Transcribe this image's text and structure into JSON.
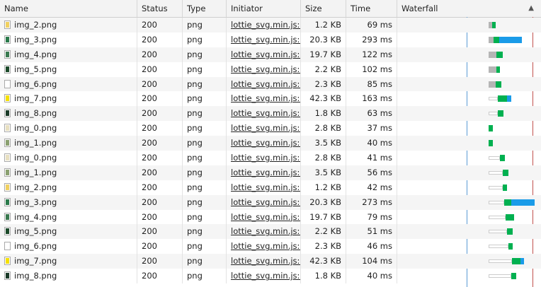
{
  "columns": {
    "name": "Name",
    "status": "Status",
    "type": "Type",
    "initiator": "Initiator",
    "size": "Size",
    "time": "Time",
    "waterfall": "Waterfall"
  },
  "colors": {
    "queue": "#ffffff",
    "stall": "#b5b5b5",
    "waiting": "#00b050",
    "download": "#1a9be8",
    "dom_line": "#5b9bd5",
    "load_line": "#c0504d"
  },
  "rows": [
    {
      "name": "img_2.png",
      "status": "200",
      "type": "png",
      "initiator": "lottie_svg.min.js:1",
      "size": "1.2 KB",
      "time": "69 ms",
      "icon": "#f0d060"
    },
    {
      "name": "img_3.png",
      "status": "200",
      "type": "png",
      "initiator": "lottie_svg.min.js:1",
      "size": "20.3 KB",
      "time": "293 ms",
      "icon": "#2a7a4a"
    },
    {
      "name": "img_4.png",
      "status": "200",
      "type": "png",
      "initiator": "lottie_svg.min.js:1",
      "size": "19.7 KB",
      "time": "122 ms",
      "icon": "#3a7a50"
    },
    {
      "name": "img_5.png",
      "status": "200",
      "type": "png",
      "initiator": "lottie_svg.min.js:1",
      "size": "2.2 KB",
      "time": "102 ms",
      "icon": "#1c4a2a"
    },
    {
      "name": "img_6.png",
      "status": "200",
      "type": "png",
      "initiator": "lottie_svg.min.js:1",
      "size": "2.3 KB",
      "time": "85 ms",
      "icon": "#ffffff"
    },
    {
      "name": "img_7.png",
      "status": "200",
      "type": "png",
      "initiator": "lottie_svg.min.js:1",
      "size": "42.3 KB",
      "time": "163 ms",
      "icon": "#f5e000"
    },
    {
      "name": "img_8.png",
      "status": "200",
      "type": "png",
      "initiator": "lottie_svg.min.js:1",
      "size": "1.8 KB",
      "time": "63 ms",
      "icon": "#1a3a28"
    },
    {
      "name": "img_0.png",
      "status": "200",
      "type": "png",
      "initiator": "lottie_svg.min.js:1",
      "size": "2.8 KB",
      "time": "37 ms",
      "icon": "#e8e0c0"
    },
    {
      "name": "img_1.png",
      "status": "200",
      "type": "png",
      "initiator": "lottie_svg.min.js:1",
      "size": "3.5 KB",
      "time": "40 ms",
      "icon": "#8aa070"
    },
    {
      "name": "img_0.png",
      "status": "200",
      "type": "png",
      "initiator": "lottie_svg.min.js:1",
      "size": "2.8 KB",
      "time": "41 ms",
      "icon": "#e8e0c0"
    },
    {
      "name": "img_1.png",
      "status": "200",
      "type": "png",
      "initiator": "lottie_svg.min.js:1",
      "size": "3.5 KB",
      "time": "56 ms",
      "icon": "#8aa070"
    },
    {
      "name": "img_2.png",
      "status": "200",
      "type": "png",
      "initiator": "lottie_svg.min.js:1",
      "size": "1.2 KB",
      "time": "42 ms",
      "icon": "#f0d060"
    },
    {
      "name": "img_3.png",
      "status": "200",
      "type": "png",
      "initiator": "lottie_svg.min.js:1",
      "size": "20.3 KB",
      "time": "273 ms",
      "icon": "#2a7a4a"
    },
    {
      "name": "img_4.png",
      "status": "200",
      "type": "png",
      "initiator": "lottie_svg.min.js:1",
      "size": "19.7 KB",
      "time": "79 ms",
      "icon": "#3a7a50"
    },
    {
      "name": "img_5.png",
      "status": "200",
      "type": "png",
      "initiator": "lottie_svg.min.js:1",
      "size": "2.2 KB",
      "time": "51 ms",
      "icon": "#1c4a2a"
    },
    {
      "name": "img_6.png",
      "status": "200",
      "type": "png",
      "initiator": "lottie_svg.min.js:1",
      "size": "2.3 KB",
      "time": "46 ms",
      "icon": "#ffffff"
    },
    {
      "name": "img_7.png",
      "status": "200",
      "type": "png",
      "initiator": "lottie_svg.min.js:1",
      "size": "42.3 KB",
      "time": "104 ms",
      "icon": "#f5e000"
    },
    {
      "name": "img_8.png",
      "status": "200",
      "type": "png",
      "initiator": "lottie_svg.min.js:1",
      "size": "1.8 KB",
      "time": "40 ms",
      "icon": "#1a3a28"
    }
  ]
}
